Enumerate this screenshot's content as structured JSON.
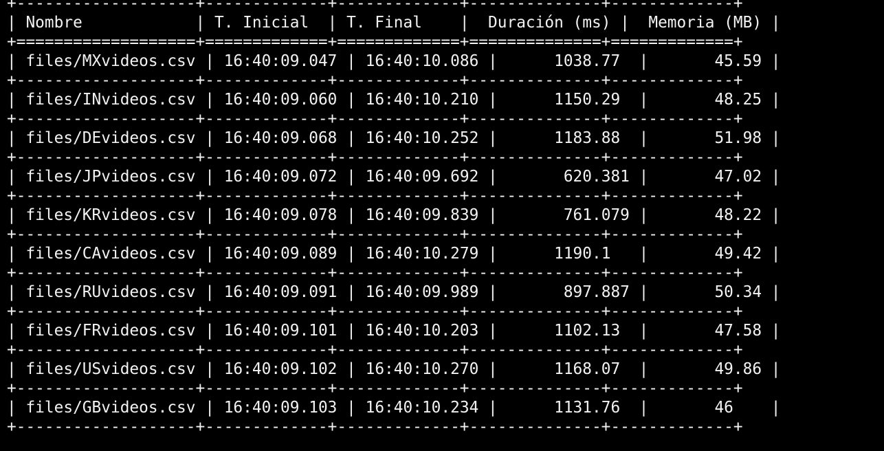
{
  "table": {
    "headers": [
      "Nombre",
      "T. Inicial",
      "T. Final",
      "Duración (ms)",
      "Memoria (MB)"
    ],
    "rows": [
      [
        "files/MXvideos.csv",
        "16:40:09.047",
        "16:40:10.086",
        "1038.77",
        "45.59"
      ],
      [
        "files/INvideos.csv",
        "16:40:09.060",
        "16:40:10.210",
        "1150.29",
        "48.25"
      ],
      [
        "files/DEvideos.csv",
        "16:40:09.068",
        "16:40:10.252",
        "1183.88",
        "51.98"
      ],
      [
        "files/JPvideos.csv",
        "16:40:09.072",
        "16:40:09.692",
        "620.381",
        "47.02"
      ],
      [
        "files/KRvideos.csv",
        "16:40:09.078",
        "16:40:09.839",
        "761.079",
        "48.22"
      ],
      [
        "files/CAvideos.csv",
        "16:40:09.089",
        "16:40:10.279",
        "1190.1",
        "49.42"
      ],
      [
        "files/RUvideos.csv",
        "16:40:09.091",
        "16:40:09.989",
        "897.887",
        "50.34"
      ],
      [
        "files/FRvideos.csv",
        "16:40:09.101",
        "16:40:10.203",
        "1102.13",
        "47.58"
      ],
      [
        "files/USvideos.csv",
        "16:40:09.102",
        "16:40:10.270",
        "1168.07",
        "49.86"
      ],
      [
        "files/GBvideos.csv",
        "16:40:09.103",
        "16:40:10.234",
        "1131.76",
        "46"
      ]
    ]
  }
}
